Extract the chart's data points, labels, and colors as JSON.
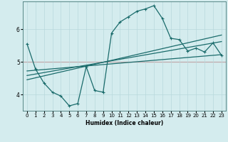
{
  "xlabel": "Humidex (Indice chaleur)",
  "background_color": "#d4ecee",
  "grid_color": "#b8d8dc",
  "line_color": "#1a6b6b",
  "red_line_color": "#cc4444",
  "xlim": [
    -0.5,
    23.5
  ],
  "ylim": [
    3.5,
    6.85
  ],
  "yticks": [
    4,
    5,
    6
  ],
  "xticks": [
    0,
    1,
    2,
    3,
    4,
    5,
    6,
    7,
    8,
    9,
    10,
    11,
    12,
    13,
    14,
    15,
    16,
    17,
    18,
    19,
    20,
    21,
    22,
    23
  ],
  "main_x": [
    0,
    1,
    2,
    3,
    4,
    5,
    6,
    7,
    8,
    9,
    10,
    11,
    12,
    13,
    14,
    15,
    16,
    17,
    18,
    19,
    20,
    21,
    22,
    23
  ],
  "main_y": [
    5.55,
    4.78,
    4.35,
    4.07,
    3.95,
    3.65,
    3.72,
    4.85,
    4.12,
    4.07,
    5.88,
    6.22,
    6.38,
    6.55,
    6.62,
    6.72,
    6.33,
    5.72,
    5.68,
    5.33,
    5.42,
    5.3,
    5.58,
    5.2
  ],
  "trend1_x": [
    0,
    23
  ],
  "trend1_y": [
    4.72,
    5.22
  ],
  "trend2_x": [
    0,
    23
  ],
  "trend2_y": [
    4.58,
    5.62
  ],
  "trend3_x": [
    0,
    23
  ],
  "trend3_y": [
    4.45,
    5.82
  ],
  "red_y": 5.0,
  "line_width": 0.9,
  "marker_size": 2.5,
  "tick_fontsize": 5.0,
  "xlabel_fontsize": 5.5
}
